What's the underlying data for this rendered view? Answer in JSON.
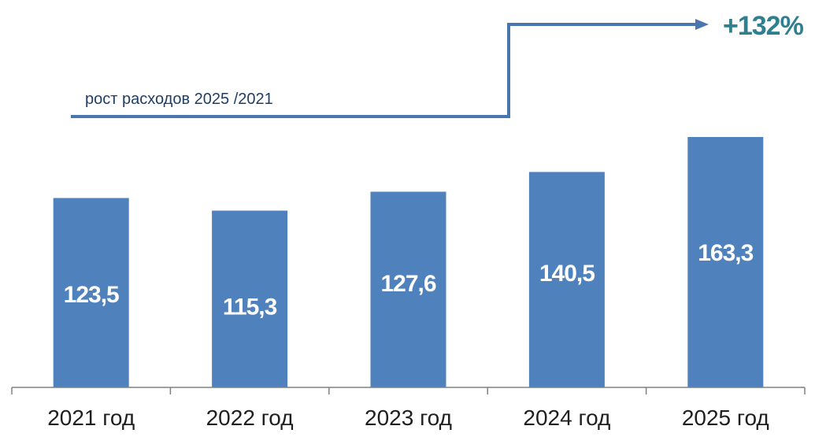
{
  "chart_data": {
    "type": "bar",
    "categories": [
      "2021 год",
      "2022 год",
      "2023 год",
      "2024 год",
      "2025 год"
    ],
    "values": [
      123.5,
      115.3,
      127.6,
      140.5,
      163.3
    ],
    "value_labels": [
      "123,5",
      "115,3",
      "127,6",
      "140,5",
      "163,3"
    ],
    "title": "",
    "xlabel": "",
    "ylabel": "",
    "ylim": [
      0,
      185
    ],
    "grid": false,
    "bar_color": "#4f81bd",
    "annotation": {
      "text": "рост расходов 2025 /2021",
      "growth": "+132%",
      "line_color": "#4a76b0",
      "growth_color": "#2e7f8f"
    }
  }
}
